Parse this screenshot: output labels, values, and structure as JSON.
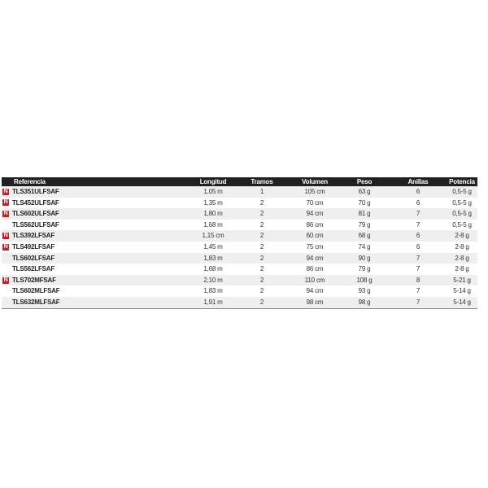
{
  "table": {
    "headers": [
      "Referencia",
      "Longitud",
      "Tramos",
      "Volumen",
      "Peso",
      "Anillas",
      "Potencia"
    ],
    "new_badge_label": "N",
    "badge_color": "#c8202a",
    "header_color": "#231f20",
    "rows": [
      {
        "new": true,
        "cells": [
          "TLS351ULFSAF",
          "1,05 m",
          "1",
          "105 cm",
          "63 g",
          "6",
          "0,5-5 g"
        ]
      },
      {
        "new": true,
        "cells": [
          "TLS452ULFSAF",
          "1,35 m",
          "2",
          "70 cm",
          "70 g",
          "6",
          "0,5-5 g"
        ]
      },
      {
        "new": true,
        "cells": [
          "TLS602ULFSAF",
          "1,80 m",
          "2",
          "94 cm",
          "81 g",
          "7",
          "0,5-5 g"
        ]
      },
      {
        "new": false,
        "cells": [
          "TLS562ULFSAF",
          "1,68 m",
          "2",
          "86 cm",
          "79 g",
          "7",
          "0,5-5 g"
        ]
      },
      {
        "new": true,
        "cells": [
          "TLS392LFSAF",
          "1,15 cm",
          "2",
          "60 cm",
          "68 g",
          "6",
          "2-8 g"
        ]
      },
      {
        "new": true,
        "cells": [
          "TLS492LFSAF",
          "1,45 m",
          "2",
          "75 cm",
          "74 g",
          "6",
          "2-8 g"
        ]
      },
      {
        "new": false,
        "cells": [
          "TLS602LFSAF",
          "1,83 m",
          "2",
          "94 cm",
          "90 g",
          "7",
          "2-8 g"
        ]
      },
      {
        "new": false,
        "cells": [
          "TLS562LFSAF",
          "1,68 m",
          "2",
          "86 cm",
          "79 g",
          "7",
          "2-8 g"
        ]
      },
      {
        "new": true,
        "cells": [
          "TLS702MFSAF",
          "2,10 m",
          "2",
          "110 cm",
          "108 g",
          "8",
          "5-21 g"
        ]
      },
      {
        "new": false,
        "cells": [
          "TLS602MLFSAF",
          "1,83 m",
          "2",
          "94 cm",
          "93 g",
          "7",
          "5-14 g"
        ]
      },
      {
        "new": false,
        "cells": [
          "TLS632MLFSAF",
          "1,91 m",
          "2",
          "98 cm",
          "98 g",
          "7",
          "5-14 g"
        ]
      }
    ]
  }
}
